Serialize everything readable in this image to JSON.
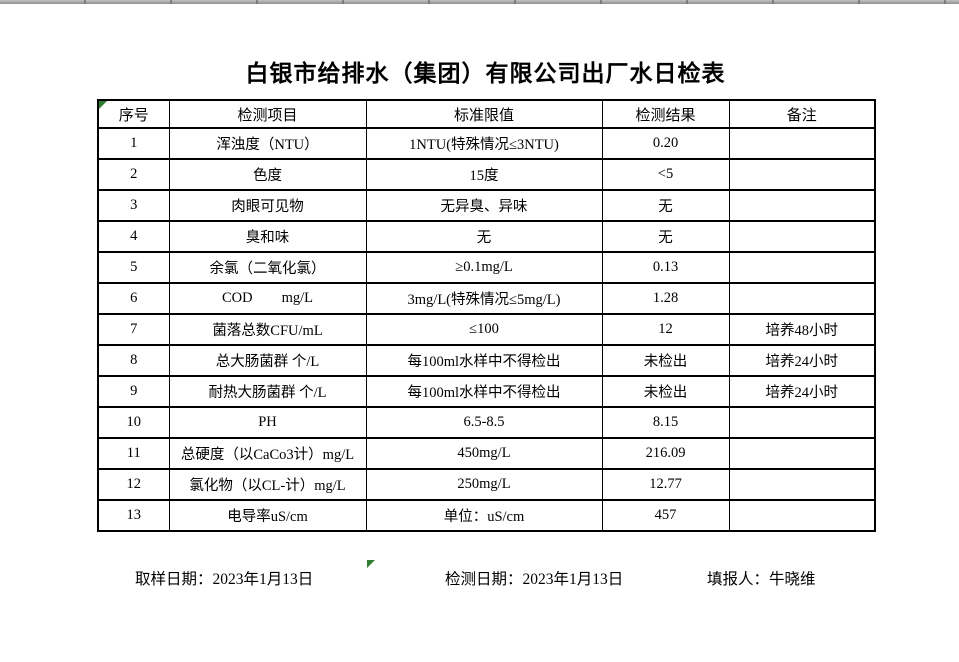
{
  "colors": {
    "indicator_green": "#2e7d32",
    "border_black": "#000000",
    "strip_gray": "#9e9e9e"
  },
  "title": "白银市给排水（集团）有限公司出厂水日检表",
  "table": {
    "headers": [
      "序号",
      "检测项目",
      "标准限值",
      "检测结果",
      "备注"
    ],
    "rows": [
      [
        "1",
        "浑浊度（NTU）",
        "1NTU(特殊情况≤3NTU)",
        "0.20",
        ""
      ],
      [
        "2",
        "色度",
        "15度",
        "<5",
        ""
      ],
      [
        "3",
        "肉眼可见物",
        "无异臭、异味",
        "无",
        ""
      ],
      [
        "4",
        "臭和味",
        "无",
        "无",
        ""
      ],
      [
        "5",
        "余氯（二氧化氯）",
        "≥0.1mg/L",
        "0.13",
        ""
      ],
      [
        "6",
        "COD        mg/L",
        "3mg/L(特殊情况≤5mg/L)",
        "1.28",
        ""
      ],
      [
        "7",
        "菌落总数CFU/mL",
        "≤100",
        "12",
        "培养48小时"
      ],
      [
        "8",
        "总大肠菌群 个/L",
        "每100ml水样中不得检出",
        "未检出",
        "培养24小时"
      ],
      [
        "9",
        "耐热大肠菌群 个/L",
        "每100ml水样中不得检出",
        "未检出",
        "培养24小时"
      ],
      [
        "10",
        "PH",
        "6.5-8.5",
        "8.15",
        ""
      ],
      [
        "11",
        "总硬度（以CaCo3计）mg/L",
        "450mg/L",
        "216.09",
        ""
      ],
      [
        "12",
        "氯化物（以CL-计）mg/L",
        "250mg/L",
        "12.77",
        ""
      ],
      [
        "13",
        "电导率uS/cm",
        "单位：uS/cm",
        "457",
        ""
      ]
    ]
  },
  "footer": {
    "sampling_date": "取样日期：2023年1月13日",
    "testing_date": "检测日期：2023年1月13日",
    "reporter": "填报人：牛晓维"
  }
}
